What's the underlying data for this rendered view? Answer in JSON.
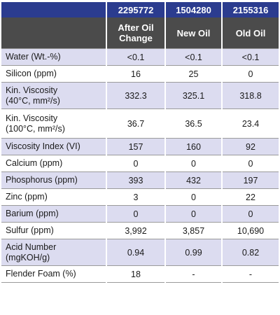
{
  "columns": [
    {
      "id": "2295772",
      "label_line1": "After Oil",
      "label_line2": "Change"
    },
    {
      "id": "1504280",
      "label_line1": "New Oil",
      "label_line2": ""
    },
    {
      "id": "2155316",
      "label_line1": "Old Oil",
      "label_line2": ""
    }
  ],
  "rows": [
    {
      "name": "Water (Wt.-%)",
      "name_line2": "",
      "values": [
        "<0.1",
        "<0.1",
        "<0.1"
      ]
    },
    {
      "name": "Silicon (ppm)",
      "name_line2": "",
      "values": [
        "16",
        "25",
        "0"
      ]
    },
    {
      "name": "Kin. Viscosity",
      "name_line2": "(40°C, mm²/s)",
      "values": [
        "332.3",
        "325.1",
        "318.8"
      ]
    },
    {
      "name": "Kin. Viscosity",
      "name_line2": "(100°C, mm²/s)",
      "values": [
        "36.7",
        "36.5",
        "23.4"
      ]
    },
    {
      "name": "Viscosity Index (VI)",
      "name_line2": "",
      "values": [
        "157",
        "160",
        "92"
      ]
    },
    {
      "name": "Calcium (ppm)",
      "name_line2": "",
      "values": [
        "0",
        "0",
        "0"
      ]
    },
    {
      "name": "Phosphorus (ppm)",
      "name_line2": "",
      "values": [
        "393",
        "432",
        "197"
      ]
    },
    {
      "name": "Zinc (ppm)",
      "name_line2": "",
      "values": [
        "3",
        "0",
        "22"
      ]
    },
    {
      "name": "Barium (ppm)",
      "name_line2": "",
      "values": [
        "0",
        "0",
        "0"
      ]
    },
    {
      "name": "Sulfur (ppm)",
      "name_line2": "",
      "values": [
        "3,992",
        "3,857",
        "10,690"
      ]
    },
    {
      "name": "Acid Number",
      "name_line2": "(mgKOH/g)",
      "values": [
        "0.94",
        "0.99",
        "0.82"
      ]
    },
    {
      "name": "Flender Foam (%)",
      "name_line2": "",
      "values": [
        "18",
        "-",
        "-"
      ]
    }
  ]
}
